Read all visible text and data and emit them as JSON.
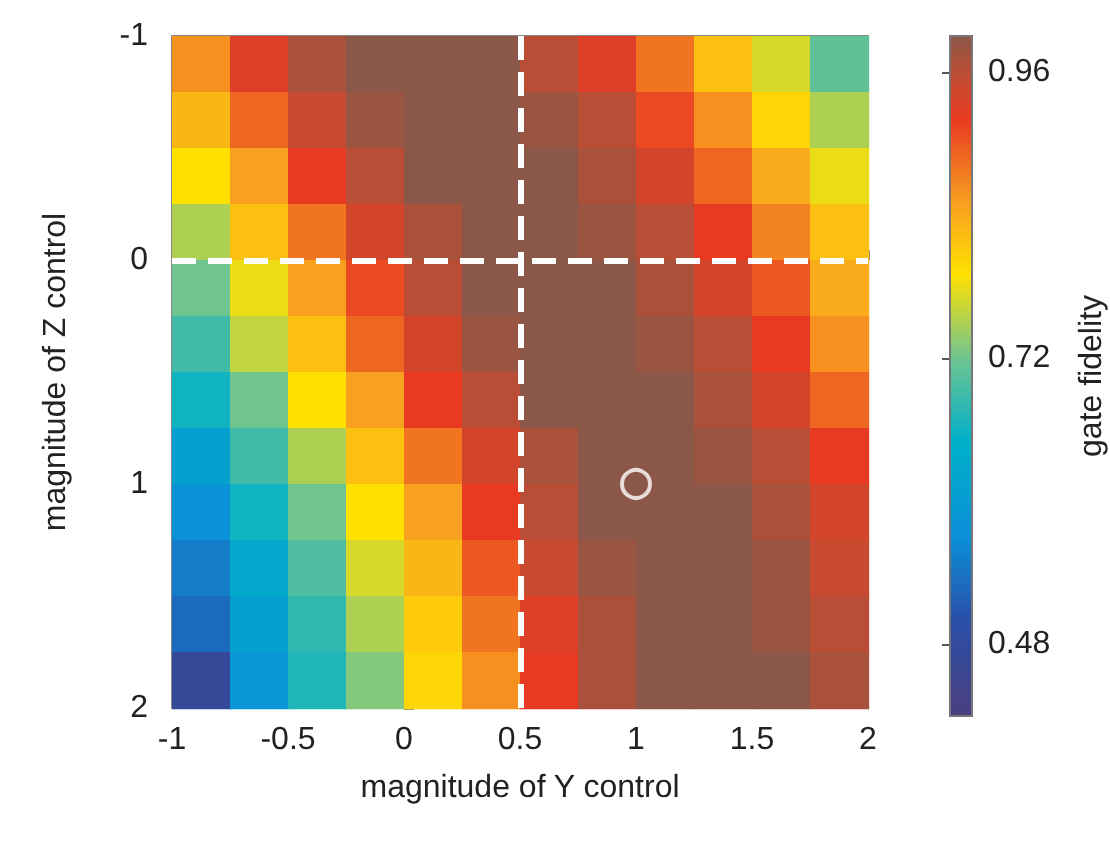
{
  "chart_data": {
    "type": "heatmap",
    "xlabel": "magnitude of Y control",
    "ylabel": "magnitude of Z control",
    "clabel": "gate fidelity",
    "xlim": [
      -1,
      2
    ],
    "ylim": [
      2,
      -1
    ],
    "xticks": [
      -1,
      -0.5,
      0,
      0.5,
      1,
      1.5,
      2
    ],
    "yticks": [
      -1,
      0,
      1,
      2
    ],
    "clim": [
      0.42,
      0.99
    ],
    "cticks": [
      0.48,
      0.72,
      0.96
    ],
    "cells": [
      [
        0.86,
        0.93,
        0.97,
        0.99,
        0.99,
        0.99,
        0.96,
        0.93,
        0.88,
        0.82,
        0.77,
        0.71
      ],
      [
        0.83,
        0.89,
        0.95,
        0.98,
        0.99,
        0.99,
        0.98,
        0.96,
        0.91,
        0.86,
        0.8,
        0.75
      ],
      [
        0.79,
        0.85,
        0.92,
        0.96,
        0.99,
        0.99,
        0.99,
        0.97,
        0.94,
        0.89,
        0.84,
        0.78
      ],
      [
        0.75,
        0.82,
        0.88,
        0.94,
        0.97,
        0.99,
        0.99,
        0.98,
        0.96,
        0.92,
        0.87,
        0.82
      ],
      [
        0.72,
        0.78,
        0.85,
        0.91,
        0.96,
        0.99,
        0.99,
        0.99,
        0.97,
        0.94,
        0.9,
        0.84
      ],
      [
        0.69,
        0.76,
        0.82,
        0.89,
        0.94,
        0.98,
        0.99,
        0.99,
        0.98,
        0.96,
        0.92,
        0.86
      ],
      [
        0.66,
        0.72,
        0.79,
        0.85,
        0.92,
        0.96,
        0.99,
        0.99,
        0.99,
        0.97,
        0.94,
        0.89
      ],
      [
        0.61,
        0.69,
        0.75,
        0.82,
        0.88,
        0.94,
        0.97,
        0.99,
        0.99,
        0.98,
        0.96,
        0.92
      ],
      [
        0.58,
        0.66,
        0.72,
        0.79,
        0.85,
        0.92,
        0.96,
        0.99,
        0.99,
        0.99,
        0.97,
        0.94
      ],
      [
        0.55,
        0.63,
        0.7,
        0.77,
        0.83,
        0.9,
        0.95,
        0.98,
        0.99,
        0.99,
        0.98,
        0.95
      ],
      [
        0.53,
        0.61,
        0.68,
        0.75,
        0.81,
        0.88,
        0.93,
        0.97,
        0.99,
        0.99,
        0.98,
        0.96
      ],
      [
        0.47,
        0.59,
        0.67,
        0.73,
        0.8,
        0.86,
        0.92,
        0.97,
        0.99,
        0.99,
        0.99,
        0.97
      ]
    ],
    "ref_lines": [
      {
        "axis": "x",
        "value": 0.5,
        "color": "#ffffff",
        "line_style": "dashed"
      },
      {
        "axis": "y",
        "value": 0,
        "color": "#ffffff",
        "line_style": "dashed"
      }
    ],
    "series": [
      {
        "type": "scatter",
        "x": [
          1
        ],
        "values": [
          1
        ],
        "color": "#ffffff",
        "marker": "circle"
      }
    ]
  }
}
